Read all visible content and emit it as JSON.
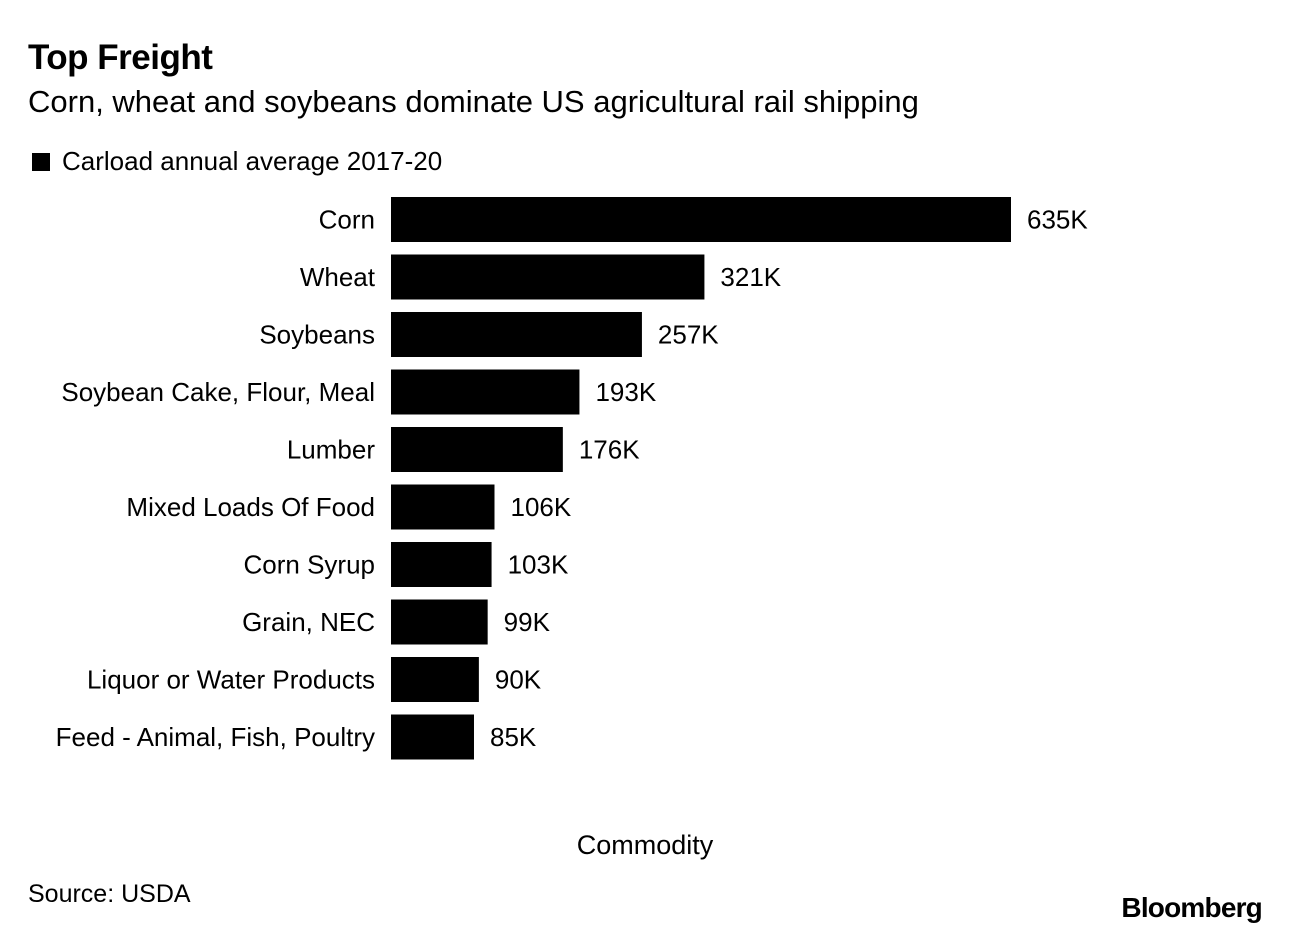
{
  "header": {
    "title": "Top Freight",
    "subtitle": "Corn, wheat and soybeans dominate US agricultural rail shipping"
  },
  "footer": {
    "source": "Source: USDA",
    "brand": "Bloomberg"
  },
  "colors": {
    "bar": "#000000",
    "background": "#ffffff"
  },
  "chart_data": {
    "type": "bar",
    "orientation": "horizontal",
    "title": "Top Freight",
    "subtitle": "Corn, wheat and soybeans dominate US agricultural rail shipping",
    "xlabel": "Commodity",
    "ylabel": "",
    "grid": false,
    "legend_position": "top-left",
    "categories": [
      "Corn",
      "Wheat",
      "Soybeans",
      "Soybean Cake, Flour, Meal",
      "Lumber",
      "Mixed Loads Of Food",
      "Corn Syrup",
      "Grain, NEC",
      "Liquor or Water Products",
      "Feed - Animal, Fish, Poultry"
    ],
    "series": [
      {
        "name": "Carload annual average 2017-20",
        "color": "#000000",
        "values": [
          635000,
          321000,
          257000,
          193000,
          176000,
          106000,
          103000,
          99000,
          90000,
          85000
        ],
        "labels": [
          "635K",
          "321K",
          "257K",
          "193K",
          "176K",
          "106K",
          "103K",
          "99K",
          "90K",
          "85K"
        ]
      }
    ]
  }
}
